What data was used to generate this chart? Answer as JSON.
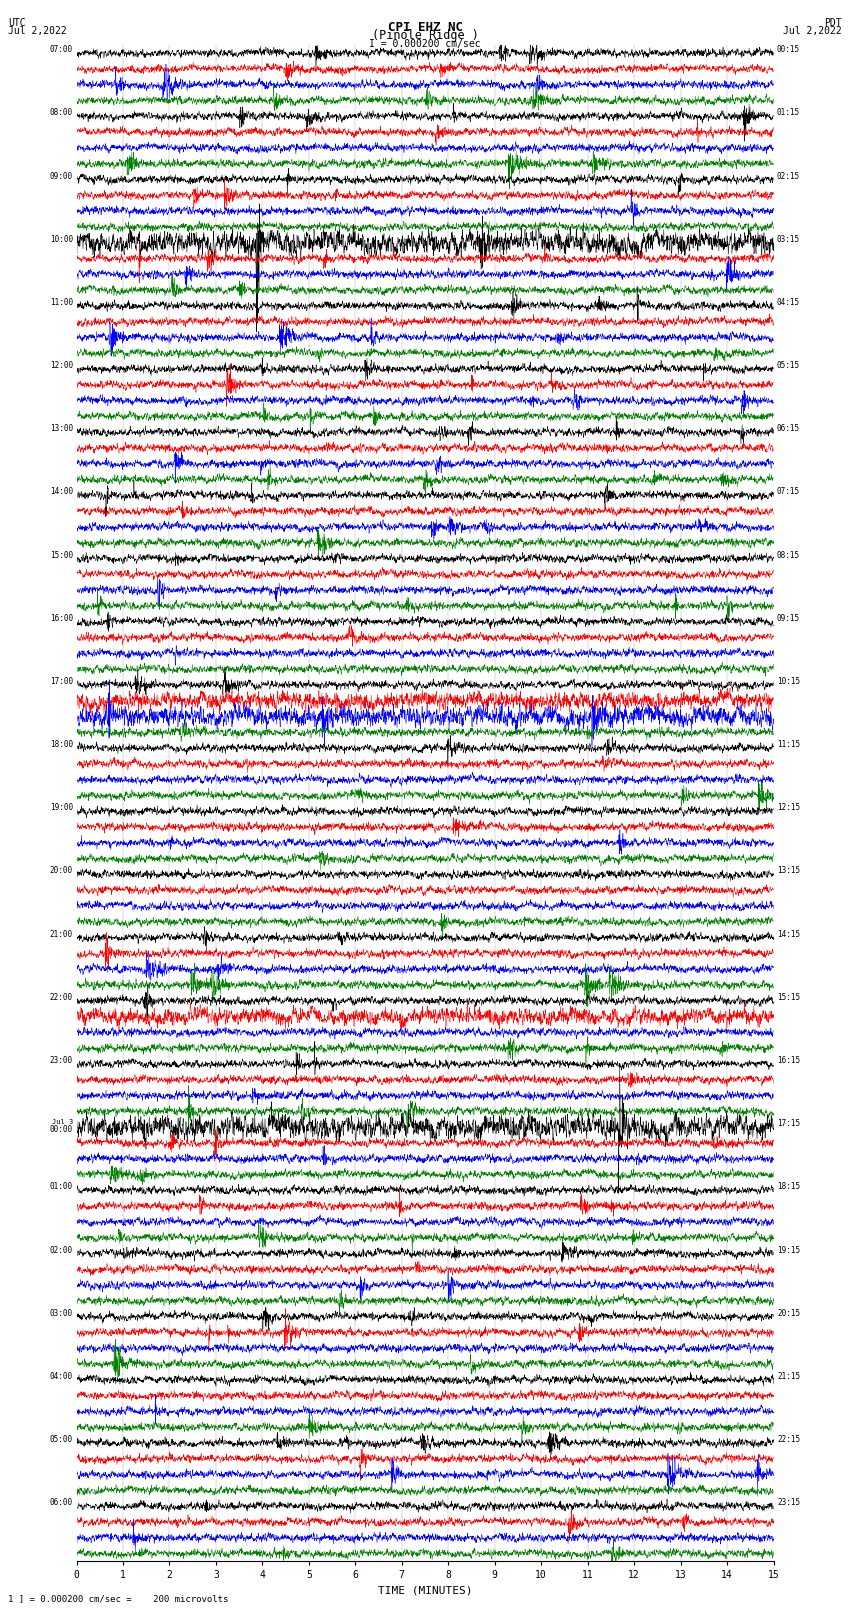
{
  "title_line1": "CPI EHZ NC",
  "title_line2": "(Pinole Ridge )",
  "scale_label": "I = 0.000200 cm/sec",
  "utc_label": "UTC\nJul 2,2022",
  "pdt_label": "PDT\nJul 2,2022",
  "xlabel": "TIME (MINUTES)",
  "footer": "1 ] = 0.000200 cm/sec =    200 microvolts",
  "left_times": [
    "07:00",
    "08:00",
    "09:00",
    "10:00",
    "11:00",
    "12:00",
    "13:00",
    "14:00",
    "15:00",
    "16:00",
    "17:00",
    "18:00",
    "19:00",
    "20:00",
    "21:00",
    "22:00",
    "23:00",
    "Jul 3\n00:00",
    "01:00",
    "02:00",
    "03:00",
    "04:00",
    "05:00",
    "06:00"
  ],
  "right_times": [
    "00:15",
    "01:15",
    "02:15",
    "03:15",
    "04:15",
    "05:15",
    "06:15",
    "07:15",
    "08:15",
    "09:15",
    "10:15",
    "11:15",
    "12:15",
    "13:15",
    "14:15",
    "15:15",
    "16:15",
    "17:15",
    "18:15",
    "19:15",
    "20:15",
    "21:15",
    "22:15",
    "23:15"
  ],
  "colors": [
    "black",
    "red",
    "blue",
    "green"
  ],
  "n_rows": 24,
  "traces_per_row": 4,
  "x_min": 0,
  "x_max": 15,
  "x_ticks": [
    0,
    1,
    2,
    3,
    4,
    5,
    6,
    7,
    8,
    9,
    10,
    11,
    12,
    13,
    14,
    15
  ],
  "bg_color": "white",
  "seed": 42,
  "fig_width": 8.5,
  "fig_height": 16.13,
  "dpi": 100
}
